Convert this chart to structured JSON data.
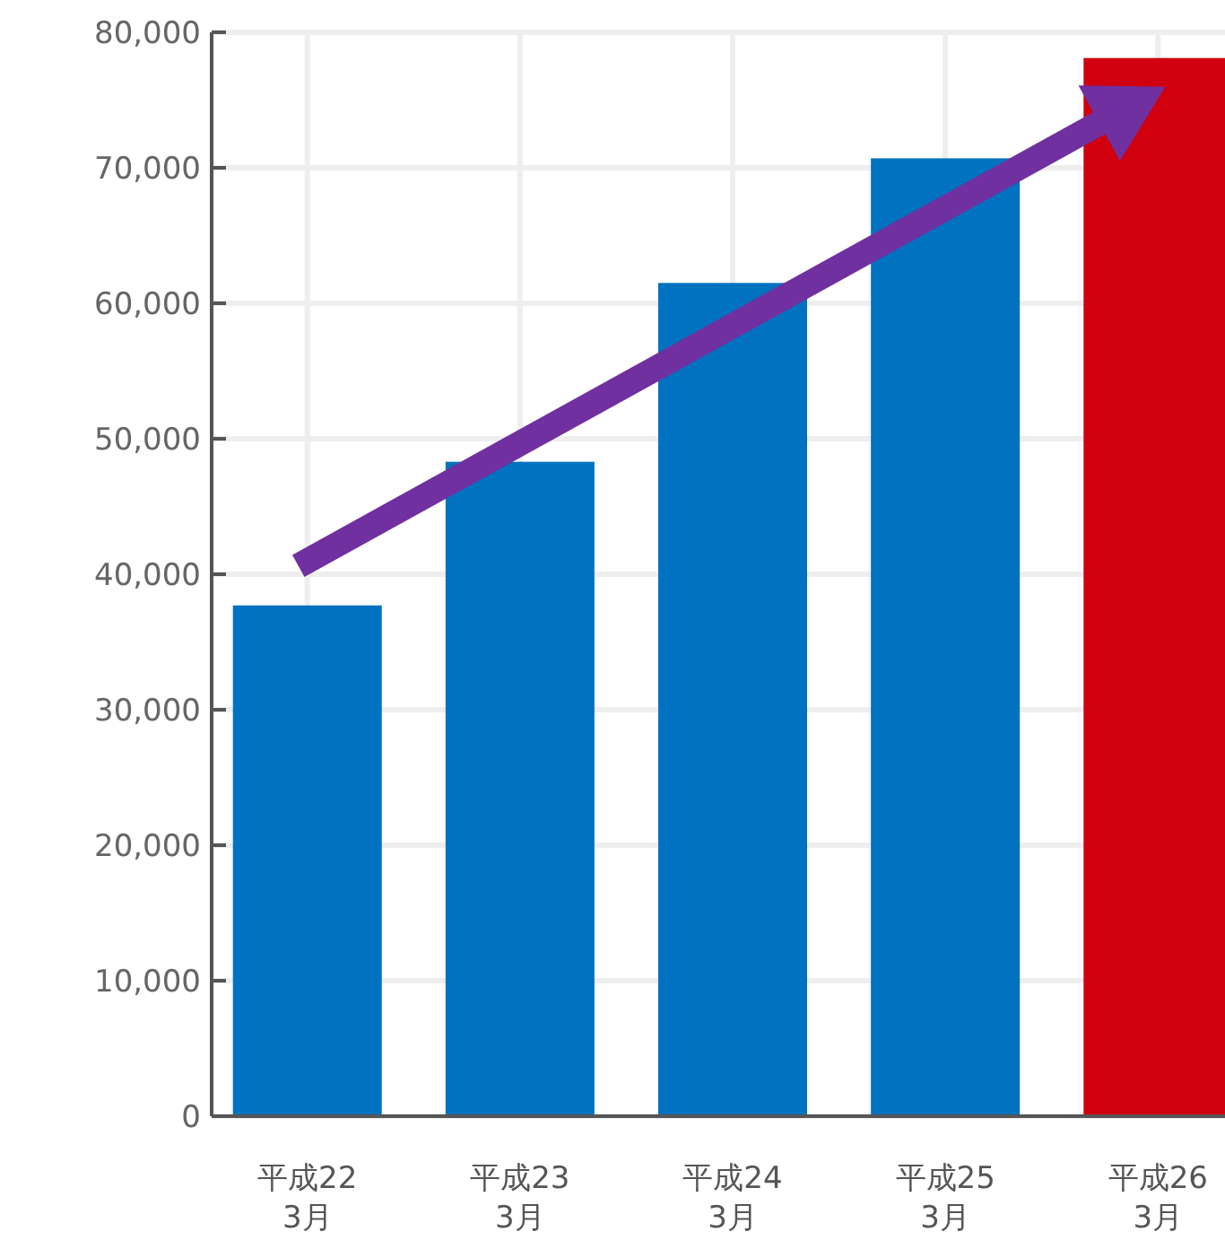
{
  "chart_data": {
    "type": "bar",
    "categories": [
      "平成22\n3月",
      "平成23\n3月",
      "平成24\n3月",
      "平成25\n3月",
      "平成26\n3月"
    ],
    "values": [
      37700,
      48300,
      61500,
      70700,
      78100
    ],
    "colors": [
      "#0072c0",
      "#0072c0",
      "#0072c0",
      "#0072c0",
      "#d0000f"
    ],
    "ylim": [
      0,
      80000
    ],
    "yticks": [
      0,
      {
        "value": 10000,
        "label": "10,000"
      },
      {
        "value": 20000,
        "label": "20,000"
      },
      {
        "value": 30000,
        "label": "30,000"
      },
      {
        "value": 40000,
        "label": "40,000"
      },
      {
        "value": 50000,
        "label": "50,000"
      },
      {
        "value": 60000,
        "label": "60,000"
      },
      {
        "value": 70000,
        "label": "70,000"
      },
      {
        "value": 80000,
        "label": "80,000"
      }
    ],
    "grid": true
  }
}
